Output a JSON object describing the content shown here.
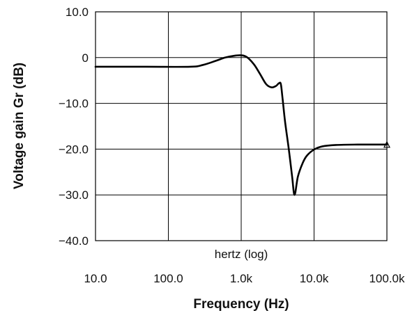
{
  "chart_data": {
    "type": "line",
    "title": "",
    "xlabel": "Frequency (Hz)",
    "ylabel": "Voltage gain Gr (dB)",
    "x_scale": "log",
    "xlim": [
      10,
      100000
    ],
    "ylim": [
      -40,
      10
    ],
    "grid": true,
    "annotation": "hertz (log)",
    "x_tick_values": [
      10,
      100,
      1000,
      10000,
      100000
    ],
    "x_tick_labels": [
      "10.0",
      "100.0",
      "1.0k",
      "10.0k",
      "100.0k"
    ],
    "y_tick_values": [
      10,
      0,
      -10,
      -20,
      -30,
      -40
    ],
    "y_tick_labels": [
      "10.0",
      "0",
      "−10.0",
      "−20.0",
      "−30.0",
      "−40.0"
    ],
    "series": [
      {
        "color": "#000000",
        "x": [
          10,
          50,
          200,
          300,
          450,
          600,
          800,
          1000,
          1200,
          1500,
          1800,
          2200,
          2600,
          3000,
          3300,
          3500,
          3700,
          4000,
          4500,
          5000,
          5400,
          6000,
          7000,
          8000,
          10000,
          13000,
          20000,
          40000,
          100000
        ],
        "y": [
          -2,
          -2,
          -2,
          -1.6,
          -0.7,
          0,
          0.4,
          0.5,
          0.1,
          -1.5,
          -3.5,
          -5.8,
          -6.5,
          -6.2,
          -5.6,
          -5.8,
          -9,
          -14,
          -20,
          -26,
          -30,
          -26,
          -23,
          -21.4,
          -20.1,
          -19.4,
          -19.1,
          -19.0,
          -19.0
        ]
      }
    ]
  }
}
